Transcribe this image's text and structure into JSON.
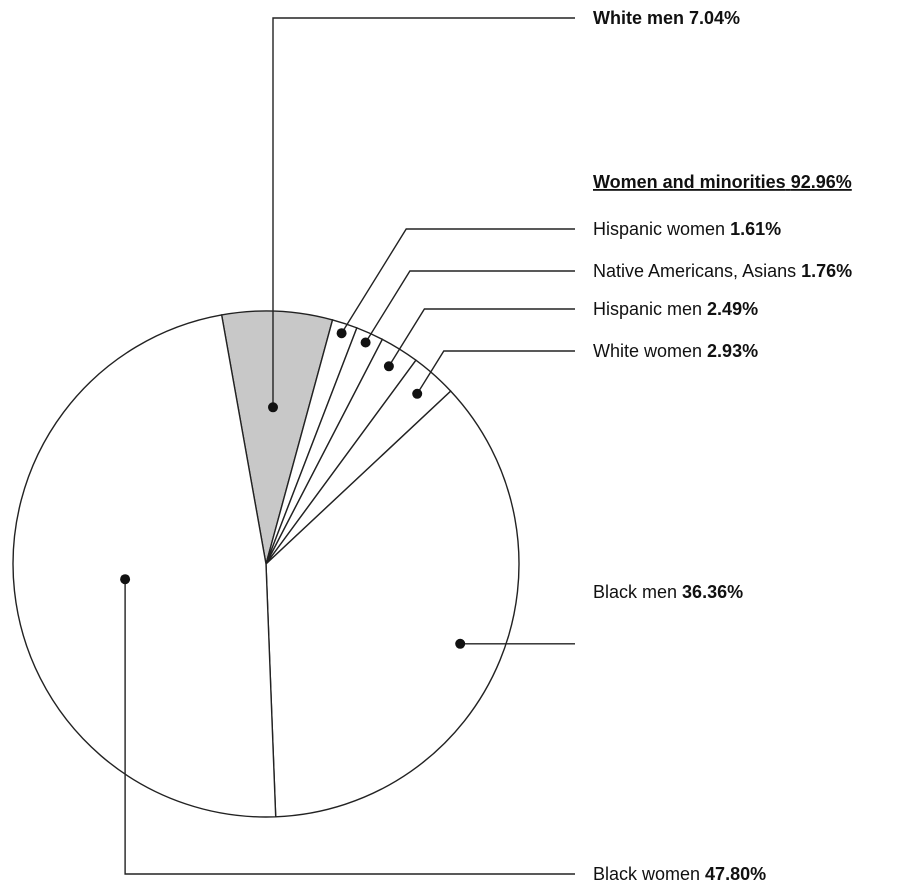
{
  "chart_data": {
    "type": "pie",
    "group_label": {
      "name": "Women and minorities",
      "value_text": "92.96%",
      "value": 92.96
    },
    "slices": [
      {
        "label": "White men",
        "value": 7.04,
        "value_text": "7.04%",
        "color": "#c8c8c8",
        "label_bold": true
      },
      {
        "label": "Hispanic women",
        "value": 1.61,
        "value_text": "1.61%",
        "color": "#ffffff",
        "label_bold": false
      },
      {
        "label": "Native Americans, Asians",
        "value": 1.76,
        "value_text": "1.76%",
        "color": "#ffffff",
        "label_bold": false
      },
      {
        "label": "Hispanic men",
        "value": 2.49,
        "value_text": "2.49%",
        "color": "#ffffff",
        "label_bold": false
      },
      {
        "label": "White women",
        "value": 2.93,
        "value_text": "2.93%",
        "color": "#ffffff",
        "label_bold": false
      },
      {
        "label": "Black men",
        "value": 36.36,
        "value_text": "36.36%",
        "color": "#ffffff",
        "label_bold": false
      },
      {
        "label": "Black women",
        "value": 47.8,
        "value_text": "47.80%",
        "color": "#ffffff",
        "label_bold": false
      }
    ]
  }
}
